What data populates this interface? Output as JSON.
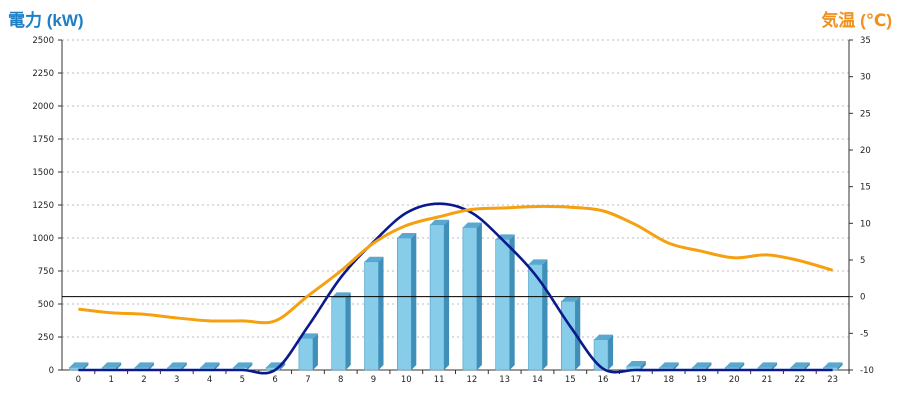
{
  "chart_data": {
    "type": "bar+line",
    "left_axis": {
      "label": "電力 (kW)",
      "ticks": [
        0,
        250,
        500,
        750,
        1000,
        1250,
        1500,
        1750,
        2000,
        2250,
        2500
      ],
      "range": [
        0,
        2500
      ]
    },
    "right_axis": {
      "label": "気温 (℃)",
      "ticks": [
        -10,
        -5,
        0,
        5,
        10,
        15,
        20,
        25,
        30,
        35
      ],
      "range": [
        -10,
        35
      ]
    },
    "categories": [
      "0",
      "1",
      "2",
      "3",
      "4",
      "5",
      "6",
      "7",
      "8",
      "9",
      "10",
      "11",
      "12",
      "13",
      "14",
      "15",
      "16",
      "17",
      "18",
      "19",
      "20",
      "21",
      "22",
      "23"
    ],
    "series": [
      {
        "type": "bar",
        "axis": "left",
        "color": "#7fc8e8",
        "values": [
          20,
          20,
          20,
          20,
          20,
          20,
          20,
          240,
          550,
          820,
          1000,
          1100,
          1080,
          990,
          800,
          520,
          230,
          30,
          20,
          20,
          20,
          20,
          20,
          20
        ]
      },
      {
        "type": "line",
        "axis": "left",
        "color": "#0a1a8c",
        "values": [
          0,
          0,
          0,
          0,
          0,
          0,
          0,
          330,
          700,
          970,
          1190,
          1260,
          1190,
          970,
          700,
          330,
          10,
          0,
          0,
          0,
          0,
          0,
          0,
          0
        ]
      },
      {
        "type": "line",
        "axis": "right",
        "color": "#f5a010",
        "values": [
          -1.7,
          -2.2,
          -2.4,
          -2.9,
          -3.3,
          -3.3,
          -3.3,
          0.1,
          3.5,
          7.3,
          9.7,
          10.9,
          11.9,
          12.1,
          12.3,
          12.2,
          11.7,
          9.8,
          7.3,
          6.2,
          5.3,
          5.7,
          4.9,
          3.6
        ]
      }
    ],
    "reference_line": {
      "axis": "right",
      "value": 0
    },
    "grid": true
  }
}
